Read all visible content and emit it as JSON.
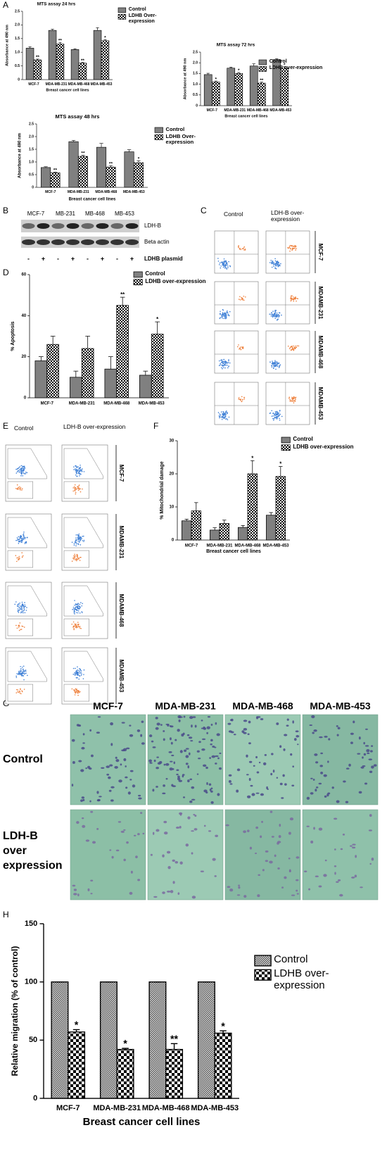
{
  "panel_labels": [
    "A",
    "B",
    "C",
    "D",
    "E",
    "F",
    "G",
    "H"
  ],
  "chart_data": [
    {
      "type": "bar",
      "title": "MTS assay 24 hrs",
      "y_label": "Absorbance at 490 nm",
      "x_label": "Breast cancer cell lines",
      "categories": [
        "MCF-7",
        "MDA-MB-231",
        "MDA-MB-468",
        "MDA-MB-453"
      ],
      "ylim": [
        0,
        2.5
      ],
      "yticks": [
        0,
        0.5,
        {
          "value": 1,
          "label": "1.0"
        },
        1.5,
        {
          "value": 2,
          "label": "2.0"
        },
        2.5
      ],
      "series": [
        {
          "name": "Control",
          "color": "#808080",
          "values": [
            1.15,
            1.8,
            1.1,
            1.8
          ],
          "errors": [
            0.05,
            0.04,
            0.03,
            0.1
          ],
          "annotations": [
            null,
            null,
            null,
            null
          ]
        },
        {
          "name": "LDHB Over-expression",
          "color": "#ffffff",
          "pattern": "checker",
          "values": [
            0.72,
            1.3,
            0.6,
            1.42
          ],
          "errors": [
            0.03,
            0.06,
            0.03,
            0.04
          ],
          "annotations": [
            "**",
            "**",
            "**",
            "*"
          ]
        }
      ]
    },
    {
      "type": "bar",
      "title": "MTS assay 72 hrs",
      "y_label": "Absorbance at 490 nm",
      "x_label": "Breast cancer cell lines",
      "categories": [
        "MCF-7",
        "MDA-MB-231",
        "MDA-MB-468",
        "MDA-MB-453"
      ],
      "ylim": [
        0,
        2.5
      ],
      "yticks": [
        0,
        0.5,
        {
          "value": 1,
          "label": "1.0"
        },
        1.5,
        {
          "value": 2,
          "label": "2.0"
        },
        2.5
      ],
      "series": [
        {
          "name": "Control",
          "color": "#808080",
          "values": [
            1.45,
            1.75,
            1.85,
            2.15
          ],
          "errors": [
            0.06,
            0.05,
            0.1,
            0.04
          ],
          "annotations": [
            null,
            null,
            null,
            null
          ]
        },
        {
          "name": "LDHB over-expression",
          "color": "#ffffff",
          "pattern": "checker",
          "values": [
            1.1,
            1.5,
            1.05,
            1.75
          ],
          "errors": [
            0.05,
            0.05,
            0.05,
            0.07
          ],
          "annotations": [
            "*",
            "*",
            "**",
            "*"
          ]
        }
      ]
    },
    {
      "type": "bar",
      "title": "MTS assay 48 hrs",
      "y_label": "Absorbance at 490 nm",
      "x_label": "Breast cancer cell lines",
      "categories": [
        "MCF-7",
        "MDA-MB-231",
        "MDA-MB-468",
        "MDA-MB-453"
      ],
      "ylim": [
        0,
        2.5
      ],
      "yticks": [
        0,
        0.5,
        {
          "value": 1,
          "label": "1.0"
        },
        1.5,
        {
          "value": 2,
          "label": "2.0"
        },
        2.5
      ],
      "series": [
        {
          "name": "Control",
          "color": "#808080",
          "values": [
            0.78,
            1.8,
            1.58,
            1.4
          ],
          "errors": [
            0.03,
            0.05,
            0.15,
            0.08
          ],
          "annotations": [
            null,
            null,
            null,
            null
          ]
        },
        {
          "name": "LDHB Over-expression",
          "color": "#ffffff",
          "pattern": "checker",
          "values": [
            0.57,
            1.22,
            0.8,
            0.97
          ],
          "errors": [
            0.03,
            0.05,
            0.06,
            0.08
          ],
          "annotations": [
            "**",
            "**",
            "**",
            "*"
          ]
        }
      ]
    },
    {
      "type": "bar",
      "y_label": "% Apoptosis",
      "categories": [
        "MCF-7",
        "MDA-MB-231",
        "MDA-MB-468",
        "MDA-MB-453"
      ],
      "ylim": [
        0,
        60
      ],
      "yticks": [
        0,
        20,
        40,
        60
      ],
      "series": [
        {
          "name": "Control",
          "color": "#808080",
          "values": [
            18,
            10,
            14,
            11
          ],
          "errors": [
            2,
            3,
            6,
            2
          ],
          "annotations": [
            null,
            null,
            null,
            null
          ]
        },
        {
          "name": "LDHB over-expression",
          "color": "#ffffff",
          "pattern": "checker",
          "values": [
            26,
            24,
            45,
            31
          ],
          "errors": [
            4,
            6,
            4,
            6
          ],
          "annotations": [
            null,
            null,
            "**",
            "*"
          ]
        }
      ]
    },
    {
      "type": "bar",
      "y_label": "% Mitochondrial damage",
      "x_label": "Breast cancer cell lines",
      "categories": [
        "MCF-7",
        "MDA-MB-231",
        "MDA-MB-468",
        "MDA-MB-453"
      ],
      "ylim": [
        0,
        30
      ],
      "yticks": [
        0,
        10,
        20,
        30
      ],
      "series": [
        {
          "name": "Control",
          "color": "#808080",
          "values": [
            5.8,
            3,
            3.8,
            7.5
          ],
          "errors": [
            0.5,
            0.7,
            0.6,
            0.8
          ],
          "annotations": [
            null,
            null,
            null,
            null
          ]
        },
        {
          "name": "LDHB over-expression",
          "color": "#ffffff",
          "pattern": "checker",
          "values": [
            8.8,
            5,
            20,
            19.2
          ],
          "errors": [
            2.5,
            1,
            4,
            3
          ],
          "annotations": [
            null,
            null,
            "*",
            "*"
          ]
        }
      ]
    },
    {
      "type": "bar",
      "y_label": "Relative migration (% of control)",
      "x_label": "Breast cancer cell lines",
      "categories": [
        "MCF-7",
        "MDA-MB-231",
        "MDA-MB-468",
        "MDA-MB-453"
      ],
      "ylim": [
        0,
        150
      ],
      "yticks": [
        0,
        50,
        100,
        150
      ],
      "series": [
        {
          "name": "Control",
          "color": "#c8c8c8",
          "pattern": "dense",
          "values": [
            100,
            100,
            100,
            100
          ],
          "errors": [
            0,
            0,
            0,
            0
          ],
          "annotations": [
            null,
            null,
            null,
            null
          ]
        },
        {
          "name": "LDHB over-expression",
          "color": "#ffffff",
          "pattern": "checker",
          "values": [
            57,
            42,
            42,
            56
          ],
          "errors": [
            2,
            1,
            5,
            2
          ],
          "annotations": [
            "*",
            "*",
            "**",
            "*"
          ]
        }
      ]
    }
  ],
  "blot": {
    "cell_lines": [
      "MCF-7",
      "MB-231",
      "MB-468",
      "MB-453"
    ],
    "bands": [
      "LDH-B",
      "Beta actin"
    ],
    "lanes": [
      "-",
      "+",
      "-",
      "+",
      "-",
      "+",
      "-",
      "+"
    ],
    "lane_label": "LDHB plasmid"
  },
  "flow_apoptosis": {
    "columns": [
      "Control",
      "LDH-B over-expression"
    ],
    "rows": [
      "MCF-7",
      "MDAMB-231",
      "MDAMB-468",
      "MDAMB-453"
    ]
  },
  "flow_mito": {
    "columns": [
      "Control",
      "LDH-B over-expression"
    ],
    "rows": [
      "MCF-7",
      "MDAMB-231",
      "MDAMB-468",
      "MDAMB-453"
    ]
  },
  "migration_images": {
    "columns": [
      "MCF-7",
      "MDA-MB-231",
      "MDA-MB-468",
      "MDA-MB-453"
    ],
    "rows": [
      "Control",
      "LDH-B over expression"
    ]
  }
}
